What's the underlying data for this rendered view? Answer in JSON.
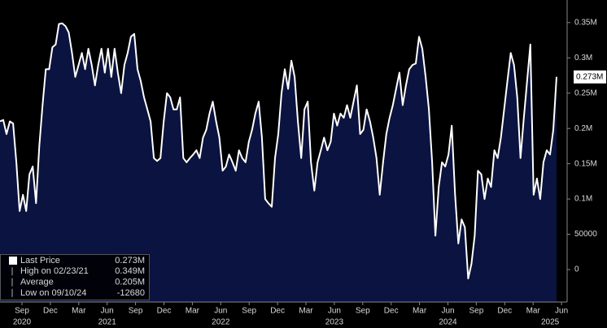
{
  "chart_data": {
    "type": "area-line",
    "line_color": "#ffffff",
    "fill_color": "#0b1340",
    "values": [
      210000,
      212000,
      192000,
      210000,
      207000,
      152000,
      83000,
      106000,
      83000,
      135000,
      146000,
      94000,
      175000,
      233000,
      284000,
      284000,
      315000,
      319000,
      348000,
      349000,
      345000,
      336000,
      307000,
      273000,
      290000,
      307000,
      284000,
      313000,
      290000,
      261000,
      290000,
      313000,
      279000,
      313000,
      273000,
      313000,
      279000,
      250000,
      290000,
      307000,
      330000,
      334000,
      284000,
      267000,
      244000,
      227000,
      210000,
      158000,
      154000,
      158000,
      210000,
      250000,
      244000,
      227000,
      227000,
      244000,
      158000,
      152000,
      158000,
      163000,
      169000,
      158000,
      187000,
      198000,
      221000,
      238000,
      210000,
      187000,
      140000,
      146000,
      163000,
      152000,
      140000,
      169000,
      158000,
      152000,
      181000,
      198000,
      221000,
      238000,
      187000,
      100000,
      94000,
      89000,
      158000,
      192000,
      250000,
      284000,
      256000,
      296000,
      273000,
      210000,
      158000,
      227000,
      238000,
      152000,
      112000,
      152000,
      169000,
      187000,
      169000,
      181000,
      221000,
      204000,
      221000,
      215000,
      233000,
      215000,
      238000,
      261000,
      192000,
      198000,
      227000,
      210000,
      187000,
      158000,
      106000,
      152000,
      192000,
      215000,
      233000,
      256000,
      279000,
      233000,
      261000,
      284000,
      290000,
      292000,
      330000,
      313000,
      273000,
      227000,
      152000,
      48000,
      117000,
      152000,
      146000,
      163000,
      204000,
      106000,
      37000,
      71000,
      60000,
      -12680,
      8000,
      48000,
      140000,
      135000,
      100000,
      129000,
      117000,
      169000,
      158000,
      187000,
      227000,
      267000,
      307000,
      290000,
      244000,
      158000,
      215000,
      267000,
      319000,
      106000,
      129000,
      100000,
      152000,
      169000,
      163000,
      198000,
      273000
    ],
    "ylim": [
      -46000,
      382000
    ],
    "yticks": [
      {
        "value": 350000,
        "label": "0.35M"
      },
      {
        "value": 300000,
        "label": "0.3M"
      },
      {
        "value": 250000,
        "label": "0.25M"
      },
      {
        "value": 200000,
        "label": "0.2M"
      },
      {
        "value": 150000,
        "label": "0.15M"
      },
      {
        "value": 100000,
        "label": "0.1M"
      },
      50000,
      0
    ],
    "month_labels": [
      "Sep",
      "Dec",
      "Mar",
      "Jun",
      "Sep",
      "Dec",
      "Mar",
      "Jun",
      "Sep",
      "Dec",
      "Mar",
      "Jun",
      "Sep",
      "Dec",
      "Mar",
      "Jun",
      "Sep",
      "Dec",
      "Mar",
      "Jun"
    ],
    "year_labels": [
      "2020",
      "2021",
      "2022",
      "2023",
      "2024",
      "2025"
    ],
    "stats": {
      "labels": [
        "Last Price",
        "High on 02/23/21",
        "Average",
        "Low on 09/10/24"
      ],
      "values": [
        273000,
        349000,
        205000,
        -12680
      ],
      "value_labels": [
        "0.273M",
        "0.349M",
        "0.205M",
        "-12680"
      ]
    }
  }
}
